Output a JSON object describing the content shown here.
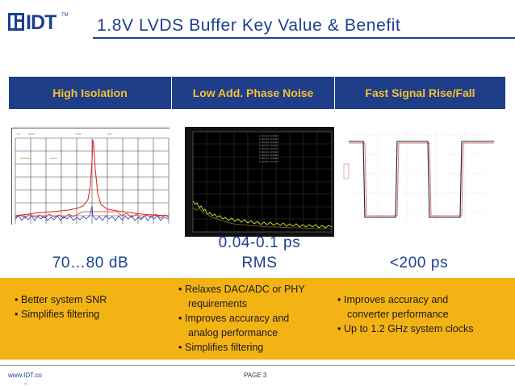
{
  "logo": {
    "text": "IDT",
    "tm": "TM"
  },
  "title": "1.8V LVDS Buffer Key Value & Benefit",
  "header": {
    "columns": [
      "High Isolation",
      "Low Add. Phase Noise",
      "Fast Signal Rise/Fall"
    ]
  },
  "colors": {
    "brand": "#1b3f8f",
    "header_band": "#1f3e89",
    "header_text": "#f2c230",
    "bullet_band": "#f4b315"
  },
  "charts": {
    "isolation_plot": {
      "icon": "spectrum-plot",
      "series_colors": [
        "#e02020",
        "#1a3ec0"
      ]
    },
    "phase_noise_plot": {
      "icon": "phase-noise-plot",
      "trace_color": "#d9d93a"
    },
    "rise_fall_plot": {
      "icon": "square-wave-plot",
      "trace_colors": [
        "#222222",
        "#e07070"
      ]
    }
  },
  "values": {
    "isolation": "70…80 dB",
    "phase_noise_line1": "0.04-0.1 ps",
    "phase_noise_line2": "RMS",
    "rise_fall": "<200 ps"
  },
  "bullets": {
    "isolation": [
      {
        "line1": "Better system SNR"
      },
      {
        "line1": "Simplifies filtering"
      }
    ],
    "phase_noise": [
      {
        "line1": "Relaxes DAC/ADC or PHY",
        "line2": "requirements"
      },
      {
        "line1": "Improves accuracy and",
        "line2": "analog performance"
      },
      {
        "line1": "Simplifies filtering"
      }
    ],
    "rise_fall": [
      {
        "line1": "Improves accuracy and",
        "line2": "converter performance"
      },
      {
        "line1": "Up to 1.2 GHz system clocks"
      }
    ]
  },
  "footer": {
    "url": "www.IDT.co",
    "url_sub": "m",
    "page": "PAGE 3"
  }
}
